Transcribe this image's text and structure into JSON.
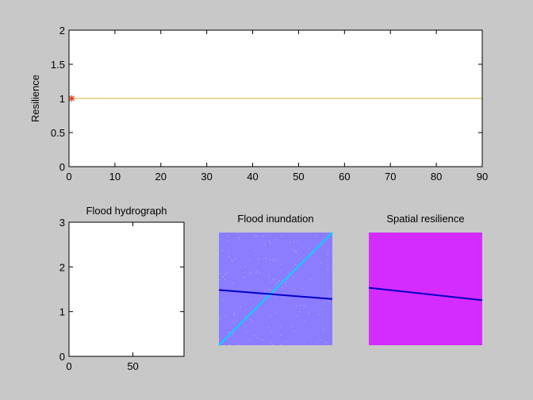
{
  "chart_data": [
    {
      "type": "line",
      "title": "",
      "xlabel": "",
      "ylabel": "Resilience",
      "xlim": [
        0,
        90
      ],
      "ylim": [
        0,
        2
      ],
      "xticks": [
        "0",
        "10",
        "20",
        "30",
        "40",
        "50",
        "60",
        "70",
        "80",
        "90"
      ],
      "yticks": [
        "0",
        "0.5",
        "1",
        "1.5",
        "2"
      ],
      "series": [
        {
          "color": "#d4b43c",
          "x": [
            0,
            90
          ],
          "y": [
            1,
            1
          ]
        }
      ],
      "marker": {
        "symbol": "*",
        "color": "#e03c1e",
        "x": 0.6,
        "y": 1
      },
      "grid": false
    },
    {
      "type": "line",
      "title": "Flood hydrograph",
      "xlim": [
        0,
        90
      ],
      "ylim": [
        0,
        3
      ],
      "xticks": [
        "0",
        "50"
      ],
      "yticks": [
        "0",
        "1",
        "2",
        "3"
      ],
      "series": [],
      "grid": false
    },
    {
      "type": "heatmap",
      "title": "Flood inundation",
      "background": "#8c7cff",
      "lines": [
        {
          "color": "#00d8ff",
          "from": [
            0,
            0
          ],
          "to": [
            1,
            1
          ]
        },
        {
          "color": "#0000c8",
          "from": [
            0,
            0.49
          ],
          "to": [
            1,
            0.41
          ]
        }
      ]
    },
    {
      "type": "heatmap",
      "title": "Spatial resilience",
      "background": "#d42cff",
      "lines": [
        {
          "color": "#0000c8",
          "from": [
            0,
            0.51
          ],
          "to": [
            1,
            0.4
          ]
        }
      ]
    }
  ]
}
